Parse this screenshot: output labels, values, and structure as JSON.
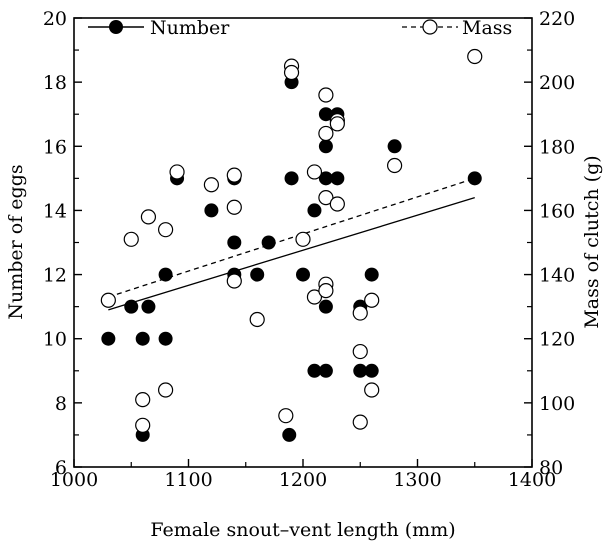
{
  "chart_data": {
    "type": "scatter",
    "title": "",
    "xlabel": "Female snout–vent length (mm)",
    "ylabel_left": "Number of eggs",
    "ylabel_right": "Mass of clutch (g)",
    "xlim": [
      1000,
      1400
    ],
    "ylim_left": [
      6,
      20
    ],
    "ylim_right": [
      80,
      220
    ],
    "x_ticks": [
      "1000",
      "1100",
      "1200",
      "1300",
      "1400"
    ],
    "y_left_ticks": [
      "6",
      "8",
      "10",
      "12",
      "14",
      "16",
      "18",
      "20"
    ],
    "y_right_ticks": [
      "80",
      "100",
      "120",
      "140",
      "160",
      "180",
      "200",
      "220"
    ],
    "legend": {
      "placement": "top",
      "number_label": "Number",
      "mass_label": "Mass"
    },
    "series": [
      {
        "name": "Number",
        "axis": "left",
        "marker": "filled-circle",
        "points": [
          [
            1030,
            10
          ],
          [
            1050,
            11
          ],
          [
            1060,
            10
          ],
          [
            1060,
            7
          ],
          [
            1065,
            11
          ],
          [
            1080,
            10
          ],
          [
            1080,
            12
          ],
          [
            1090,
            15
          ],
          [
            1120,
            14
          ],
          [
            1140,
            15
          ],
          [
            1140,
            13
          ],
          [
            1140,
            12
          ],
          [
            1160,
            12
          ],
          [
            1170,
            13
          ],
          [
            1188,
            7
          ],
          [
            1190,
            18
          ],
          [
            1190,
            15
          ],
          [
            1200,
            12
          ],
          [
            1210,
            14
          ],
          [
            1210,
            9
          ],
          [
            1220,
            17
          ],
          [
            1220,
            16
          ],
          [
            1220,
            15
          ],
          [
            1220,
            11
          ],
          [
            1220,
            9
          ],
          [
            1230,
            17
          ],
          [
            1230,
            15
          ],
          [
            1250,
            11
          ],
          [
            1250,
            9
          ],
          [
            1260,
            12
          ],
          [
            1260,
            9
          ],
          [
            1280,
            16
          ],
          [
            1350,
            15
          ]
        ],
        "trend": [
          [
            1030,
            10.9
          ],
          [
            1350,
            14.4
          ]
        ]
      },
      {
        "name": "Mass",
        "axis": "right",
        "marker": "open-circle",
        "points": [
          [
            1030,
            132
          ],
          [
            1050,
            151
          ],
          [
            1060,
            101
          ],
          [
            1060,
            93
          ],
          [
            1065,
            158
          ],
          [
            1080,
            154
          ],
          [
            1080,
            104
          ],
          [
            1090,
            172
          ],
          [
            1120,
            168
          ],
          [
            1140,
            171
          ],
          [
            1140,
            161
          ],
          [
            1140,
            138
          ],
          [
            1160,
            126
          ],
          [
            1185,
            96
          ],
          [
            1190,
            205
          ],
          [
            1190,
            203
          ],
          [
            1200,
            151
          ],
          [
            1210,
            172
          ],
          [
            1210,
            133
          ],
          [
            1220,
            196
          ],
          [
            1220,
            184
          ],
          [
            1220,
            164
          ],
          [
            1220,
            137
          ],
          [
            1220,
            135
          ],
          [
            1230,
            188
          ],
          [
            1230,
            187
          ],
          [
            1230,
            162
          ],
          [
            1250,
            128
          ],
          [
            1250,
            116
          ],
          [
            1250,
            94
          ],
          [
            1260,
            132
          ],
          [
            1260,
            104
          ],
          [
            1280,
            174
          ],
          [
            1350,
            208
          ]
        ],
        "trend": [
          [
            1030,
            133
          ],
          [
            1350,
            170
          ]
        ]
      }
    ]
  }
}
